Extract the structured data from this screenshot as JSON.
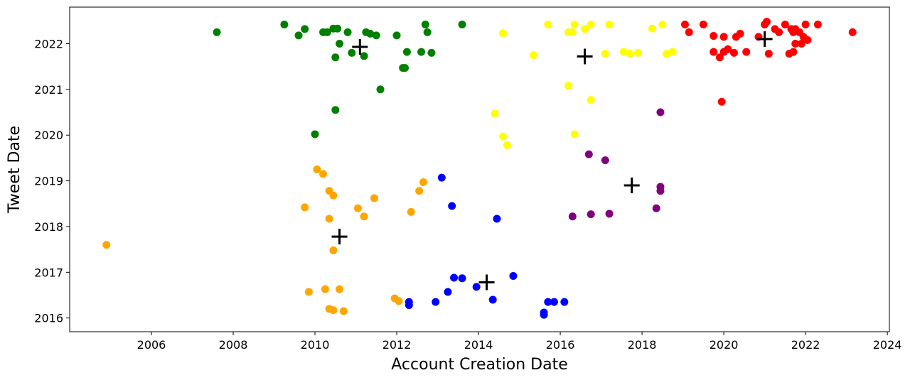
{
  "chart_data": {
    "type": "scatter",
    "title": "",
    "xlabel": "Account Creation Date",
    "ylabel": "Tweet Date",
    "xlim": [
      2004.0,
      2024.05
    ],
    "ylim": [
      2015.7,
      2022.8
    ],
    "x_ticks": [
      2006,
      2008,
      2010,
      2012,
      2014,
      2016,
      2018,
      2020,
      2022,
      2024
    ],
    "y_ticks": [
      2016,
      2017,
      2018,
      2019,
      2020,
      2021,
      2022
    ],
    "grid": false,
    "legend": "none",
    "centroid_color": "#000000",
    "series": [
      {
        "color": "#008000",
        "points": [
          [
            2007.6,
            2022.25
          ],
          [
            2009.25,
            2022.42
          ],
          [
            2009.6,
            2022.18
          ],
          [
            2009.75,
            2022.32
          ],
          [
            2010.2,
            2022.25
          ],
          [
            2010.3,
            2022.25
          ],
          [
            2010.45,
            2022.33
          ],
          [
            2010.55,
            2022.33
          ],
          [
            2010.8,
            2022.25
          ],
          [
            2011.25,
            2022.25
          ],
          [
            2011.35,
            2022.22
          ],
          [
            2011.5,
            2022.18
          ],
          [
            2012.0,
            2022.18
          ],
          [
            2012.7,
            2022.42
          ],
          [
            2012.75,
            2022.25
          ],
          [
            2013.6,
            2022.42
          ],
          [
            2010.6,
            2022.0
          ],
          [
            2010.9,
            2021.8
          ],
          [
            2010.5,
            2021.7
          ],
          [
            2011.2,
            2021.73
          ],
          [
            2012.25,
            2021.82
          ],
          [
            2012.6,
            2021.82
          ],
          [
            2012.85,
            2021.8
          ],
          [
            2012.15,
            2021.47
          ],
          [
            2012.2,
            2021.47
          ],
          [
            2011.6,
            2021.0
          ],
          [
            2010.5,
            2020.55
          ],
          [
            2010.0,
            2020.02
          ]
        ]
      },
      {
        "color": "#ffff00",
        "points": [
          [
            2014.6,
            2022.23
          ],
          [
            2015.7,
            2022.42
          ],
          [
            2016.2,
            2022.25
          ],
          [
            2016.3,
            2022.25
          ],
          [
            2016.35,
            2022.42
          ],
          [
            2016.6,
            2022.32
          ],
          [
            2016.75,
            2022.42
          ],
          [
            2017.2,
            2022.42
          ],
          [
            2018.25,
            2022.33
          ],
          [
            2018.5,
            2022.42
          ],
          [
            2015.35,
            2021.75
          ],
          [
            2017.1,
            2021.78
          ],
          [
            2017.55,
            2021.82
          ],
          [
            2017.7,
            2021.78
          ],
          [
            2017.9,
            2021.8
          ],
          [
            2018.6,
            2021.78
          ],
          [
            2018.75,
            2021.82
          ],
          [
            2016.2,
            2021.08
          ],
          [
            2016.75,
            2020.77
          ],
          [
            2014.4,
            2020.47
          ],
          [
            2014.6,
            2019.97
          ],
          [
            2014.7,
            2019.78
          ],
          [
            2016.35,
            2020.02
          ]
        ]
      },
      {
        "color": "#ff0000",
        "points": [
          [
            2019.05,
            2022.42
          ],
          [
            2019.15,
            2022.25
          ],
          [
            2019.5,
            2022.42
          ],
          [
            2019.75,
            2022.17
          ],
          [
            2020.0,
            2022.15
          ],
          [
            2020.3,
            2022.15
          ],
          [
            2020.4,
            2022.22
          ],
          [
            2020.85,
            2022.15
          ],
          [
            2021.0,
            2022.42
          ],
          [
            2021.05,
            2022.48
          ],
          [
            2021.25,
            2022.32
          ],
          [
            2021.35,
            2022.25
          ],
          [
            2021.5,
            2022.42
          ],
          [
            2021.65,
            2022.32
          ],
          [
            2021.7,
            2022.25
          ],
          [
            2021.75,
            2022.32
          ],
          [
            2021.85,
            2022.25
          ],
          [
            2022.0,
            2022.42
          ],
          [
            2022.3,
            2022.42
          ],
          [
            2023.15,
            2022.25
          ],
          [
            2019.75,
            2021.82
          ],
          [
            2019.9,
            2021.7
          ],
          [
            2020.0,
            2021.82
          ],
          [
            2020.1,
            2021.88
          ],
          [
            2020.25,
            2021.8
          ],
          [
            2020.55,
            2021.82
          ],
          [
            2021.1,
            2021.78
          ],
          [
            2021.6,
            2021.78
          ],
          [
            2021.7,
            2021.82
          ],
          [
            2021.75,
            2022.0
          ],
          [
            2021.9,
            2022.0
          ],
          [
            2021.95,
            2022.15
          ],
          [
            2022.05,
            2022.08
          ],
          [
            2019.95,
            2020.73
          ]
        ]
      },
      {
        "color": "#ffa500",
        "points": [
          [
            2004.9,
            2017.6
          ],
          [
            2010.05,
            2019.25
          ],
          [
            2010.2,
            2019.15
          ],
          [
            2010.35,
            2018.78
          ],
          [
            2010.45,
            2018.68
          ],
          [
            2009.75,
            2018.42
          ],
          [
            2010.35,
            2018.17
          ],
          [
            2011.05,
            2018.4
          ],
          [
            2011.2,
            2018.22
          ],
          [
            2011.45,
            2018.62
          ],
          [
            2012.35,
            2018.32
          ],
          [
            2012.55,
            2018.78
          ],
          [
            2012.65,
            2018.97
          ],
          [
            2010.45,
            2017.48
          ],
          [
            2009.85,
            2016.57
          ],
          [
            2010.25,
            2016.63
          ],
          [
            2010.6,
            2016.63
          ],
          [
            2010.35,
            2016.2
          ],
          [
            2010.45,
            2016.17
          ],
          [
            2010.7,
            2016.15
          ],
          [
            2011.95,
            2016.43
          ],
          [
            2012.05,
            2016.37
          ]
        ]
      },
      {
        "color": "#0000ff",
        "points": [
          [
            2013.1,
            2019.07
          ],
          [
            2013.35,
            2018.45
          ],
          [
            2014.45,
            2018.17
          ],
          [
            2013.25,
            2016.57
          ],
          [
            2013.4,
            2016.88
          ],
          [
            2013.6,
            2016.87
          ],
          [
            2013.95,
            2016.68
          ],
          [
            2014.85,
            2016.92
          ],
          [
            2014.35,
            2016.4
          ],
          [
            2012.3,
            2016.35
          ],
          [
            2012.3,
            2016.28
          ],
          [
            2012.95,
            2016.35
          ],
          [
            2015.6,
            2016.12
          ],
          [
            2015.6,
            2016.07
          ],
          [
            2015.7,
            2016.35
          ],
          [
            2015.85,
            2016.35
          ],
          [
            2016.1,
            2016.35
          ]
        ]
      },
      {
        "color": "#800080",
        "points": [
          [
            2018.45,
            2020.5
          ],
          [
            2016.7,
            2019.58
          ],
          [
            2017.1,
            2019.45
          ],
          [
            2018.45,
            2018.87
          ],
          [
            2018.45,
            2018.78
          ],
          [
            2018.35,
            2018.4
          ],
          [
            2016.3,
            2018.22
          ],
          [
            2016.75,
            2018.27
          ],
          [
            2017.2,
            2018.28
          ]
        ]
      }
    ],
    "centroids": [
      [
        2011.1,
        2021.93
      ],
      [
        2016.6,
        2021.72
      ],
      [
        2021.0,
        2022.1
      ],
      [
        2010.6,
        2017.78
      ],
      [
        2014.2,
        2016.78
      ],
      [
        2017.75,
        2018.9
      ]
    ]
  }
}
